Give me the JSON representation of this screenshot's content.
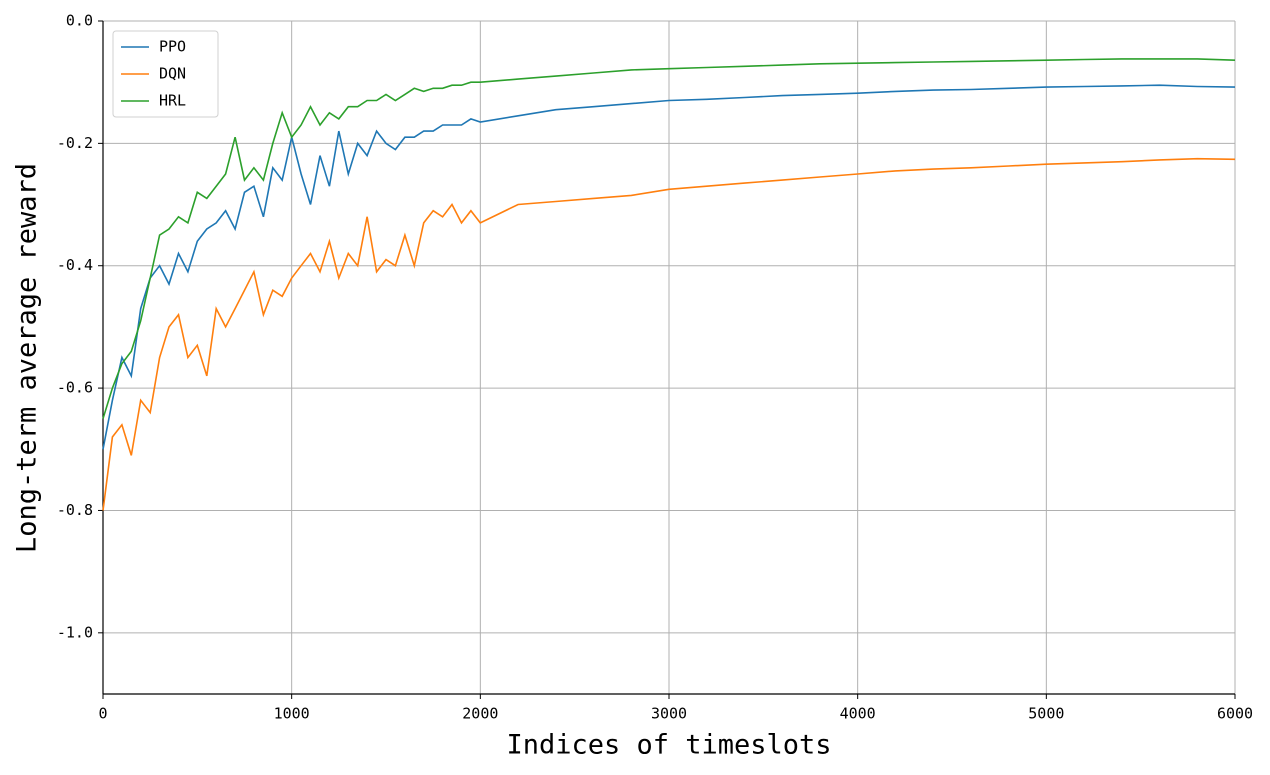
{
  "chart_data": {
    "type": "line",
    "xlabel": "Indices of timeslots",
    "ylabel": "Long-term average reward",
    "x": [
      0,
      50,
      100,
      150,
      200,
      250,
      300,
      350,
      400,
      450,
      500,
      550,
      600,
      650,
      700,
      750,
      800,
      850,
      900,
      950,
      1000,
      1050,
      1100,
      1150,
      1200,
      1250,
      1300,
      1350,
      1400,
      1450,
      1500,
      1550,
      1600,
      1650,
      1700,
      1750,
      1800,
      1850,
      1900,
      1950,
      2000,
      2200,
      2400,
      2600,
      2800,
      3000,
      3200,
      3400,
      3600,
      3800,
      4000,
      4200,
      4400,
      4600,
      4800,
      5000,
      5200,
      5400,
      5600,
      5800,
      6000
    ],
    "series": [
      {
        "name": "PPO",
        "color": "#1f77b4",
        "values": [
          -0.7,
          -0.62,
          -0.55,
          -0.58,
          -0.47,
          -0.42,
          -0.4,
          -0.43,
          -0.38,
          -0.41,
          -0.36,
          -0.34,
          -0.33,
          -0.31,
          -0.34,
          -0.28,
          -0.27,
          -0.32,
          -0.24,
          -0.26,
          -0.19,
          -0.25,
          -0.3,
          -0.22,
          -0.27,
          -0.18,
          -0.25,
          -0.2,
          -0.22,
          -0.18,
          -0.2,
          -0.21,
          -0.19,
          -0.19,
          -0.18,
          -0.18,
          -0.17,
          -0.17,
          -0.17,
          -0.16,
          -0.165,
          -0.155,
          -0.145,
          -0.14,
          -0.135,
          -0.13,
          -0.128,
          -0.125,
          -0.122,
          -0.12,
          -0.118,
          -0.115,
          -0.113,
          -0.112,
          -0.11,
          -0.108,
          -0.107,
          -0.106,
          -0.105,
          -0.107,
          -0.108
        ]
      },
      {
        "name": "DQN",
        "color": "#ff7f0e",
        "values": [
          -0.8,
          -0.68,
          -0.66,
          -0.71,
          -0.62,
          -0.64,
          -0.55,
          -0.5,
          -0.48,
          -0.55,
          -0.53,
          -0.58,
          -0.47,
          -0.5,
          -0.47,
          -0.44,
          -0.41,
          -0.48,
          -0.44,
          -0.45,
          -0.42,
          -0.4,
          -0.38,
          -0.41,
          -0.36,
          -0.42,
          -0.38,
          -0.4,
          -0.32,
          -0.41,
          -0.39,
          -0.4,
          -0.35,
          -0.4,
          -0.33,
          -0.31,
          -0.32,
          -0.3,
          -0.33,
          -0.31,
          -0.33,
          -0.3,
          -0.295,
          -0.29,
          -0.285,
          -0.275,
          -0.27,
          -0.265,
          -0.26,
          -0.255,
          -0.25,
          -0.245,
          -0.242,
          -0.24,
          -0.237,
          -0.234,
          -0.232,
          -0.23,
          -0.227,
          -0.225,
          -0.226
        ]
      },
      {
        "name": "HRL",
        "color": "#2ca02c",
        "values": [
          -0.65,
          -0.6,
          -0.56,
          -0.54,
          -0.49,
          -0.42,
          -0.35,
          -0.34,
          -0.32,
          -0.33,
          -0.28,
          -0.29,
          -0.27,
          -0.25,
          -0.19,
          -0.26,
          -0.24,
          -0.26,
          -0.2,
          -0.15,
          -0.19,
          -0.17,
          -0.14,
          -0.17,
          -0.15,
          -0.16,
          -0.14,
          -0.14,
          -0.13,
          -0.13,
          -0.12,
          -0.13,
          -0.12,
          -0.11,
          -0.115,
          -0.11,
          -0.11,
          -0.105,
          -0.105,
          -0.1,
          -0.1,
          -0.095,
          -0.09,
          -0.085,
          -0.08,
          -0.078,
          -0.076,
          -0.074,
          -0.072,
          -0.07,
          -0.069,
          -0.068,
          -0.067,
          -0.066,
          -0.065,
          -0.064,
          -0.063,
          -0.062,
          -0.062,
          -0.062,
          -0.064
        ]
      }
    ],
    "xlim": [
      0,
      6000
    ],
    "xticks": [
      0,
      1000,
      2000,
      3000,
      4000,
      5000,
      6000
    ],
    "ylim": [
      -1.1,
      0
    ],
    "yticks": [
      {
        "value": 0,
        "label": "0.0"
      },
      -0.2,
      -0.4,
      -0.6,
      -0.8,
      {
        "value": -1,
        "label": "-1.0"
      }
    ],
    "grid": true,
    "legend": "upper left"
  }
}
